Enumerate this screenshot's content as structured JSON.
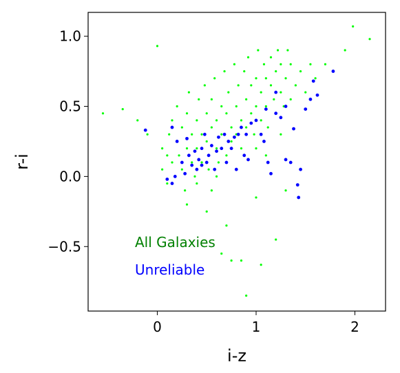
{
  "chart_data": {
    "type": "scatter",
    "xlabel": "i-z",
    "ylabel": "r-i",
    "xlim": [
      -0.7,
      2.31
    ],
    "ylim": [
      -0.96,
      1.17
    ],
    "xticks": [
      0,
      1,
      2
    ],
    "yticks": [
      {
        "value": -0.5,
        "label": "−0.5"
      },
      {
        "value": 0.0,
        "label": "0.0"
      },
      {
        "value": 0.5,
        "label": "0.5"
      },
      {
        "value": 1.0,
        "label": "1.0"
      }
    ],
    "annotations": [
      {
        "text": "All Galaxies",
        "color": "#008000"
      },
      {
        "text": "Unreliable",
        "color": "#0000ff"
      }
    ],
    "series": [
      {
        "color": "#00ff00",
        "x": [
          -0.55,
          -0.35,
          -0.2,
          -0.1,
          0.0,
          0.05,
          0.05,
          0.1,
          0.1,
          0.12,
          0.15,
          0.15,
          0.18,
          0.2,
          0.2,
          0.22,
          0.25,
          0.25,
          0.28,
          0.3,
          0.3,
          0.32,
          0.35,
          0.35,
          0.38,
          0.4,
          0.4,
          0.42,
          0.45,
          0.45,
          0.48,
          0.5,
          0.5,
          0.52,
          0.55,
          0.55,
          0.58,
          0.6,
          0.6,
          0.62,
          0.65,
          0.65,
          0.68,
          0.7,
          0.7,
          0.72,
          0.75,
          0.75,
          0.78,
          0.8,
          0.8,
          0.82,
          0.85,
          0.85,
          0.88,
          0.9,
          0.9,
          0.92,
          0.95,
          0.95,
          0.98,
          1.0,
          1.0,
          1.02,
          1.05,
          1.05,
          1.08,
          1.1,
          1.1,
          1.12,
          1.15,
          1.15,
          1.18,
          1.2,
          1.2,
          1.22,
          1.25,
          1.25,
          1.28,
          1.3,
          1.32,
          1.35,
          1.35,
          1.4,
          1.45,
          1.5,
          1.55,
          1.6,
          1.7,
          1.9,
          1.98,
          2.15,
          0.3,
          0.5,
          0.7,
          0.65,
          0.75,
          0.85,
          1.0,
          1.2,
          1.3,
          0.9,
          1.05,
          0.4,
          0.6,
          0.8,
          1.1,
          1.25,
          1.0,
          0.55
        ],
        "values": [
          0.45,
          0.48,
          0.4,
          0.3,
          0.93,
          0.2,
          0.05,
          0.15,
          -0.05,
          0.3,
          0.1,
          0.4,
          0.0,
          0.25,
          0.5,
          0.15,
          0.05,
          0.35,
          -0.1,
          0.2,
          0.45,
          0.6,
          0.1,
          0.3,
          0.0,
          0.4,
          0.2,
          0.55,
          0.1,
          0.3,
          0.65,
          0.25,
          0.45,
          0.05,
          0.35,
          0.55,
          0.7,
          0.2,
          0.4,
          0.1,
          0.5,
          0.3,
          0.75,
          0.15,
          0.45,
          0.6,
          0.35,
          0.25,
          0.8,
          0.5,
          0.3,
          0.65,
          0.4,
          0.2,
          0.75,
          0.55,
          0.35,
          0.85,
          0.45,
          0.65,
          0.3,
          0.7,
          0.5,
          0.9,
          0.4,
          0.6,
          0.8,
          0.5,
          0.7,
          0.35,
          0.65,
          0.85,
          0.55,
          0.75,
          0.45,
          0.9,
          0.6,
          0.8,
          0.5,
          0.7,
          0.9,
          0.55,
          0.8,
          0.65,
          0.75,
          0.6,
          0.8,
          0.7,
          0.8,
          0.9,
          1.07,
          0.98,
          -0.2,
          -0.25,
          -0.35,
          -0.55,
          -0.6,
          -0.6,
          -0.15,
          -0.45,
          -0.1,
          -0.85,
          -0.63,
          -0.05,
          0.0,
          0.05,
          0.15,
          0.3,
          0.2,
          -0.1
        ]
      },
      {
        "color": "#0000ff",
        "x": [
          -0.12,
          0.1,
          0.15,
          0.15,
          0.18,
          0.2,
          0.25,
          0.28,
          0.3,
          0.32,
          0.35,
          0.38,
          0.4,
          0.42,
          0.45,
          0.45,
          0.48,
          0.5,
          0.52,
          0.55,
          0.58,
          0.6,
          0.62,
          0.65,
          0.68,
          0.7,
          0.72,
          0.75,
          0.78,
          0.8,
          0.82,
          0.85,
          0.88,
          0.9,
          0.92,
          0.95,
          1.0,
          1.05,
          1.08,
          1.1,
          1.12,
          1.15,
          1.2,
          1.2,
          1.25,
          1.3,
          1.3,
          1.35,
          1.38,
          1.42,
          1.43,
          1.45,
          1.5,
          1.55,
          1.58,
          1.62,
          1.78
        ],
        "values": [
          0.33,
          -0.02,
          -0.05,
          0.35,
          0.0,
          0.25,
          0.1,
          0.02,
          0.27,
          0.15,
          0.08,
          0.18,
          0.05,
          0.12,
          0.2,
          0.08,
          0.3,
          0.1,
          0.15,
          0.22,
          0.05,
          0.18,
          0.28,
          0.2,
          0.3,
          0.1,
          0.25,
          0.2,
          0.28,
          0.05,
          0.3,
          0.35,
          0.15,
          0.3,
          0.12,
          0.38,
          0.4,
          0.3,
          0.25,
          0.48,
          0.1,
          0.02,
          0.45,
          0.6,
          0.42,
          0.5,
          0.12,
          0.1,
          0.34,
          -0.06,
          -0.15,
          0.05,
          0.48,
          0.55,
          0.68,
          0.58,
          0.75
        ]
      }
    ]
  }
}
